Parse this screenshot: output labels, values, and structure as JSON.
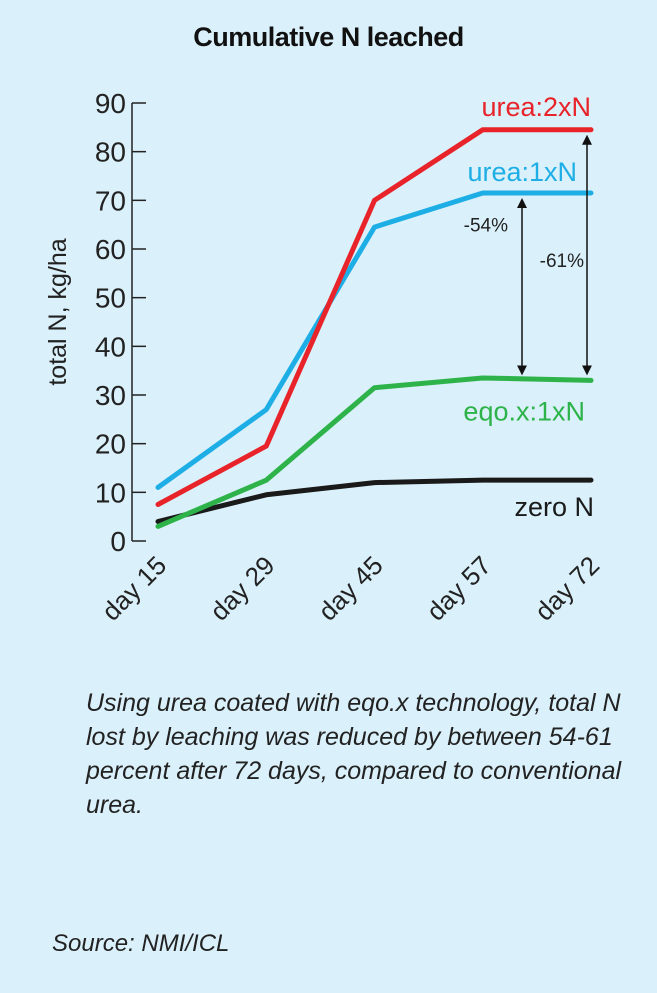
{
  "chart_data": {
    "type": "line",
    "title": "Cumulative N leached",
    "ylabel": "total N, kg/ha",
    "xlabel": "",
    "categories": [
      "day 15",
      "day 29",
      "day 45",
      "day 57",
      "day 72"
    ],
    "ylim": [
      0,
      90
    ],
    "yticks": [
      0,
      10,
      20,
      30,
      40,
      50,
      60,
      70,
      80,
      90
    ],
    "grid": false,
    "series": [
      {
        "name": "urea:2xN",
        "color": "#e8232a",
        "values": [
          7.5,
          19.5,
          70,
          84.5,
          84.5
        ]
      },
      {
        "name": "urea:1xN",
        "color": "#1eaee6",
        "values": [
          11,
          27,
          64.5,
          71.5,
          71.5
        ]
      },
      {
        "name": "eqo.x:1xN",
        "color": "#2db34a",
        "values": [
          3,
          12.5,
          31.5,
          33.5,
          33
        ]
      },
      {
        "name": "zero N",
        "color": "#1a1a1a",
        "values": [
          4,
          9.5,
          12,
          12.5,
          12.5
        ]
      }
    ],
    "annotations": [
      {
        "text": "-54%",
        "from_series": "urea:1xN",
        "to_series": "eqo.x:1xN"
      },
      {
        "text": "-61%",
        "from_series": "urea:2xN",
        "to_series": "eqo.x:1xN"
      }
    ]
  },
  "caption": "Using urea coated with eqo.x technology, total N lost by leaching was reduced by between 54-61 percent after 72 days, compared to conventional urea.",
  "source": "Source: NMI/ICL"
}
